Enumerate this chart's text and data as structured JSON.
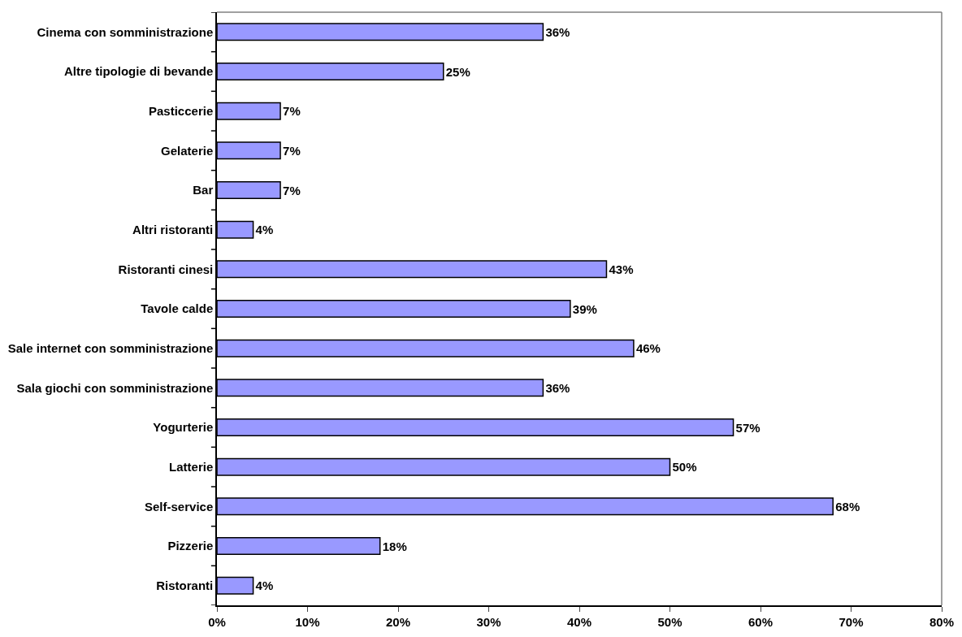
{
  "chart_data": {
    "type": "bar",
    "orientation": "horizontal",
    "categories": [
      "Cinema con somministrazione",
      "Altre tipologie di bevande",
      "Pasticcerie",
      "Gelaterie",
      "Bar",
      "Altri ristoranti",
      "Ristoranti cinesi",
      "Tavole calde",
      "Sale internet con somministrazione",
      "Sala giochi con somministrazione",
      "Yogurterie",
      "Latterie",
      "Self-service",
      "Pizzerie",
      "Ristoranti"
    ],
    "values": [
      36,
      25,
      7,
      7,
      7,
      4,
      43,
      39,
      46,
      36,
      57,
      50,
      68,
      18,
      4
    ],
    "value_labels": [
      "36%",
      "25%",
      "7%",
      "7%",
      "7%",
      "4%",
      "43%",
      "39%",
      "46%",
      "36%",
      "57%",
      "50%",
      "68%",
      "18%",
      "4%"
    ],
    "color": "#9999ff",
    "xlim": [
      0,
      80
    ],
    "xticks": [
      {
        "value": 0,
        "label": "0%"
      },
      {
        "value": 10,
        "label": "10%"
      },
      {
        "value": 20,
        "label": "20%"
      },
      {
        "value": 30,
        "label": "30%"
      },
      {
        "value": 40,
        "label": "40%"
      },
      {
        "value": 50,
        "label": "50%"
      },
      {
        "value": 60,
        "label": "60%"
      },
      {
        "value": 70,
        "label": "70%"
      },
      {
        "value": 80,
        "label": "80%"
      }
    ]
  }
}
